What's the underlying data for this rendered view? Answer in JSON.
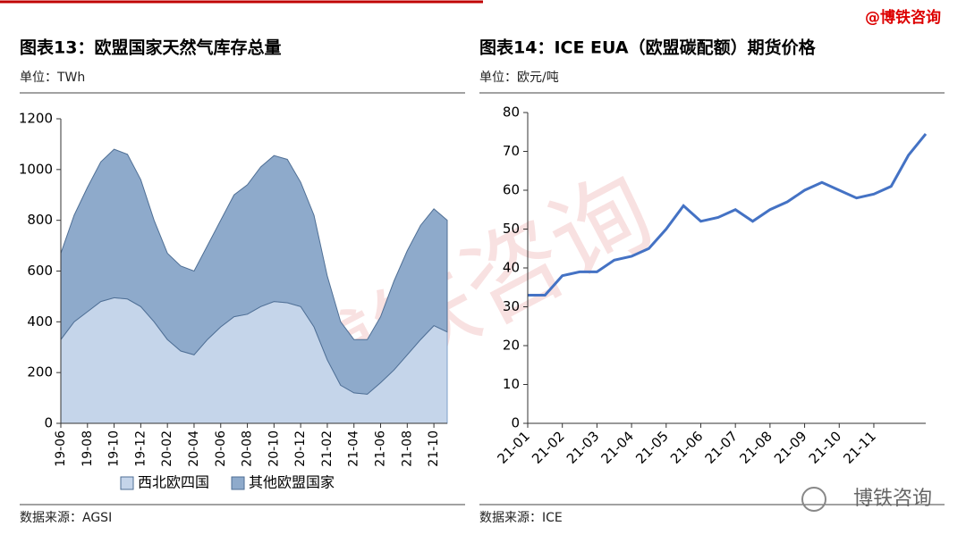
{
  "header": {
    "watermark": "@博铁咨询",
    "logo": "博铁咨询",
    "background_mark": "博铁咨询"
  },
  "chart_data": [
    {
      "type": "area",
      "title": "图表13：欧盟国家天然气库存总量",
      "unit": "单位：TWh",
      "source": "数据来源：AGSI",
      "categories": [
        "19-06",
        null,
        "19-08",
        null,
        "19-10",
        null,
        "19-12",
        null,
        "20-02",
        null,
        "20-04",
        null,
        "20-06",
        null,
        "20-08",
        null,
        "20-10",
        null,
        "20-12",
        null,
        "21-02",
        null,
        "21-04",
        null,
        "21-06",
        null,
        "21-08",
        null,
        "21-10",
        null
      ],
      "series": [
        {
          "name": "西北欧四国",
          "color": "#c5d5ea",
          "values": [
            330,
            400,
            440,
            480,
            495,
            490,
            460,
            400,
            330,
            285,
            270,
            330,
            380,
            420,
            430,
            460,
            480,
            475,
            460,
            380,
            250,
            150,
            120,
            115,
            160,
            210,
            270,
            330,
            385,
            360
          ]
        },
        {
          "name": "其他欧盟国家",
          "color": "#8eaacb",
          "values": [
            340,
            420,
            490,
            550,
            585,
            570,
            500,
            400,
            340,
            335,
            330,
            370,
            420,
            480,
            510,
            550,
            575,
            565,
            490,
            440,
            330,
            250,
            210,
            215,
            260,
            350,
            410,
            450,
            460,
            440
          ]
        }
      ],
      "ylim": [
        0,
        1200
      ],
      "yticks": [
        0,
        200,
        400,
        600,
        800,
        1000,
        1200
      ],
      "grid": false,
      "legend": "bottom"
    },
    {
      "type": "line",
      "title": "图表14：ICE EUA（欧盟碳配额）期货价格",
      "unit": "单位：欧元/吨",
      "source": "数据来源：ICE",
      "categories": [
        "21-01",
        null,
        "21-02",
        null,
        "21-03",
        null,
        "21-04",
        null,
        "21-05",
        null,
        "21-06",
        null,
        "21-07",
        null,
        "21-08",
        null,
        "21-09",
        null,
        "21-10",
        null,
        "21-11",
        null,
        null,
        null
      ],
      "values": [
        33,
        33,
        38,
        39,
        39,
        42,
        43,
        45,
        50,
        56,
        52,
        53,
        55,
        52,
        55,
        57,
        60,
        62,
        60,
        58,
        59,
        61,
        69,
        74.5
      ],
      "color": "#4472c4",
      "ylim": [
        0,
        80
      ],
      "yticks": [
        0,
        10,
        20,
        30,
        40,
        50,
        60,
        70,
        80
      ],
      "grid": false
    }
  ]
}
